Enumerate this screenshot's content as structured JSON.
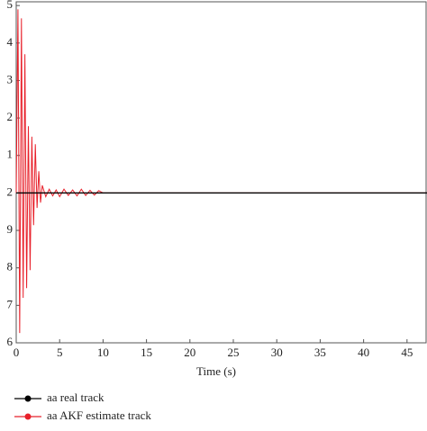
{
  "chart_data": {
    "type": "line",
    "xlabel": "Time (s)",
    "xlim": [
      0,
      47.3
    ],
    "xticks": [
      0,
      5,
      10,
      15,
      20,
      25,
      30,
      35,
      40,
      45
    ],
    "ylim": [
      0,
      9.1
    ],
    "yticks": [
      {
        "value": 0,
        "label": "6"
      },
      {
        "value": 1,
        "label": "7"
      },
      {
        "value": 2,
        "label": "8"
      },
      {
        "value": 3,
        "label": "9"
      },
      {
        "value": 4,
        "label": "2"
      },
      {
        "value": 5,
        "label": "1"
      },
      {
        "value": 6,
        "label": "2"
      },
      {
        "value": 7,
        "label": "3"
      },
      {
        "value": 8,
        "label": "4"
      },
      {
        "value": 9,
        "label": "5"
      }
    ],
    "legend": "bottom-left",
    "series": [
      {
        "name": "aa real track",
        "color": "#000000",
        "x": [
          0,
          47.3
        ],
        "values": [
          4,
          4
        ]
      },
      {
        "name": "aa AKF estimate track",
        "color": "#e8202a",
        "x": [
          0,
          0.2,
          0.4,
          0.6,
          0.8,
          1.0,
          1.2,
          1.4,
          1.6,
          1.8,
          2.0,
          2.2,
          2.4,
          2.6,
          2.8,
          3.0,
          3.4,
          3.8,
          4.2,
          4.6,
          5.0,
          5.5,
          6.0,
          6.5,
          7.0,
          7.5,
          8.0,
          8.5,
          9.0,
          9.5,
          10,
          47.3
        ],
        "values": [
          4,
          8.9,
          0.26,
          8.66,
          1.2,
          7.7,
          1.46,
          5.78,
          1.94,
          5.5,
          3.14,
          5.3,
          3.6,
          4.58,
          3.74,
          4.2,
          3.9,
          4.1,
          3.92,
          4.08,
          3.9,
          4.1,
          3.93,
          4.08,
          3.92,
          4.1,
          3.93,
          4.07,
          3.94,
          4.06,
          4,
          4
        ]
      }
    ]
  }
}
